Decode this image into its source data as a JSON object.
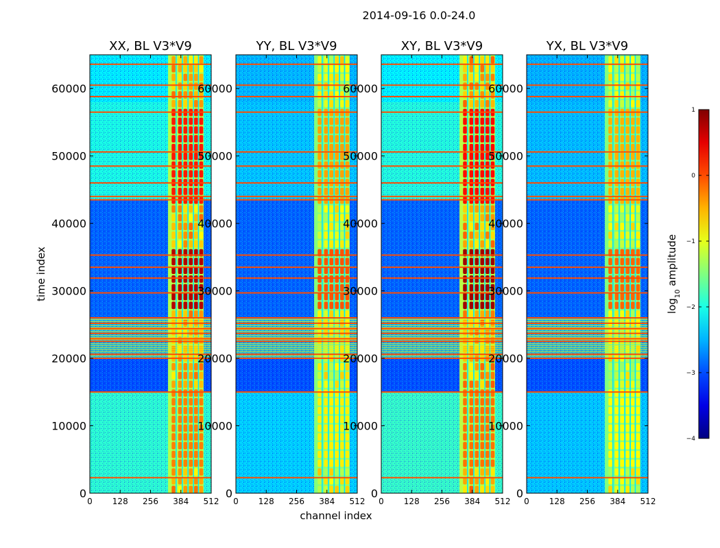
{
  "chart_data": {
    "type": "heatmap",
    "title": "2014-09-16 0.0-24.0",
    "xlabel": "channel index",
    "ylabel": "time index",
    "xlim": [
      0,
      512
    ],
    "ylim": [
      0,
      65000
    ],
    "x_ticks": [
      0,
      128,
      256,
      384,
      512
    ],
    "y_ticks": [
      0,
      10000,
      20000,
      30000,
      40000,
      50000,
      60000
    ],
    "colorbar": {
      "label": "log10 amplitude",
      "label_base": "log",
      "label_sub": "10",
      "label_rest": " amplitude",
      "range": [
        -4,
        1
      ],
      "ticks": [
        1,
        0,
        -1,
        -2,
        -3,
        -4
      ],
      "tick_labels": [
        "1",
        "0",
        "−1",
        "−2",
        "−3",
        "−4"
      ],
      "colormap": "jet"
    },
    "panels": [
      {
        "title": "XX, BL V3*V9",
        "strength": 1.0
      },
      {
        "title": "YY, BL V3*V9",
        "strength": 0.55
      },
      {
        "title": "XY, BL V3*V9",
        "strength": 1.05
      },
      {
        "title": "YX, BL V3*V9",
        "strength": 0.5
      }
    ],
    "rfi_band": {
      "channel_range": [
        330,
        480
      ]
    },
    "flagged_rows": [
      2300,
      15000,
      20000,
      20600,
      22500,
      22900,
      23700,
      24400,
      25200,
      26000,
      29700,
      31900,
      33500,
      35300,
      43500,
      44000,
      46000,
      48500,
      50600,
      56500,
      58800,
      60500,
      63600
    ]
  }
}
